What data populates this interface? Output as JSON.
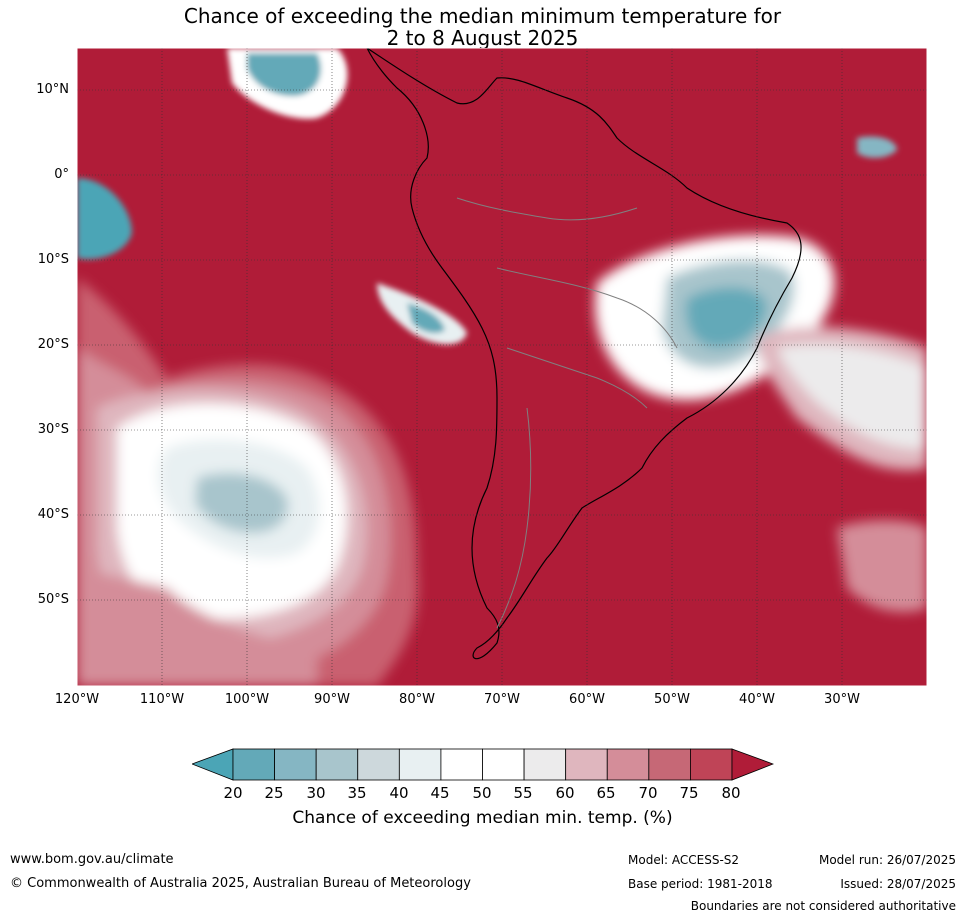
{
  "title": {
    "line1": "Chance of exceeding the median minimum temperature for",
    "line2": "2 to 8 August 2025"
  },
  "map": {
    "lat_labels": [
      "10°N",
      "0°",
      "10°S",
      "20°S",
      "30°S",
      "40°S",
      "50°S"
    ],
    "lon_labels": [
      "120°W",
      "110°W",
      "100°W",
      "90°W",
      "80°W",
      "70°W",
      "60°W",
      "50°W",
      "40°W",
      "30°W"
    ],
    "background_color": "#b01c38",
    "land_outline_color": "#000000",
    "border_color": "#808080"
  },
  "colorbar": {
    "ticks": [
      "20",
      "25",
      "30",
      "35",
      "40",
      "45",
      "50",
      "55",
      "60",
      "65",
      "70",
      "75",
      "80"
    ],
    "colors": [
      "#63a9b8",
      "#85b6c3",
      "#a8c5cc",
      "#cdd8dc",
      "#e8f0f2",
      "#ffffff",
      "#ffffff",
      "#ecebec",
      "#dfb6be",
      "#d48d99",
      "#c66876",
      "#bf4457"
    ],
    "low_extend_color": "#4ba5b6",
    "high_extend_color": "#b01c38",
    "label": "Chance of exceeding median min. temp. (%)"
  },
  "footer": {
    "url": "www.bom.gov.au/climate",
    "copyright": "© Commonwealth of Australia 2025, Australian Bureau of Meteorology",
    "model": "Model: ACCESS-S2",
    "base_period": "Base period: 1981-2018",
    "model_run": "Model run: 26/07/2025",
    "issued": "Issued: 28/07/2025",
    "disclaimer": "Boundaries are not considered authoritative"
  }
}
